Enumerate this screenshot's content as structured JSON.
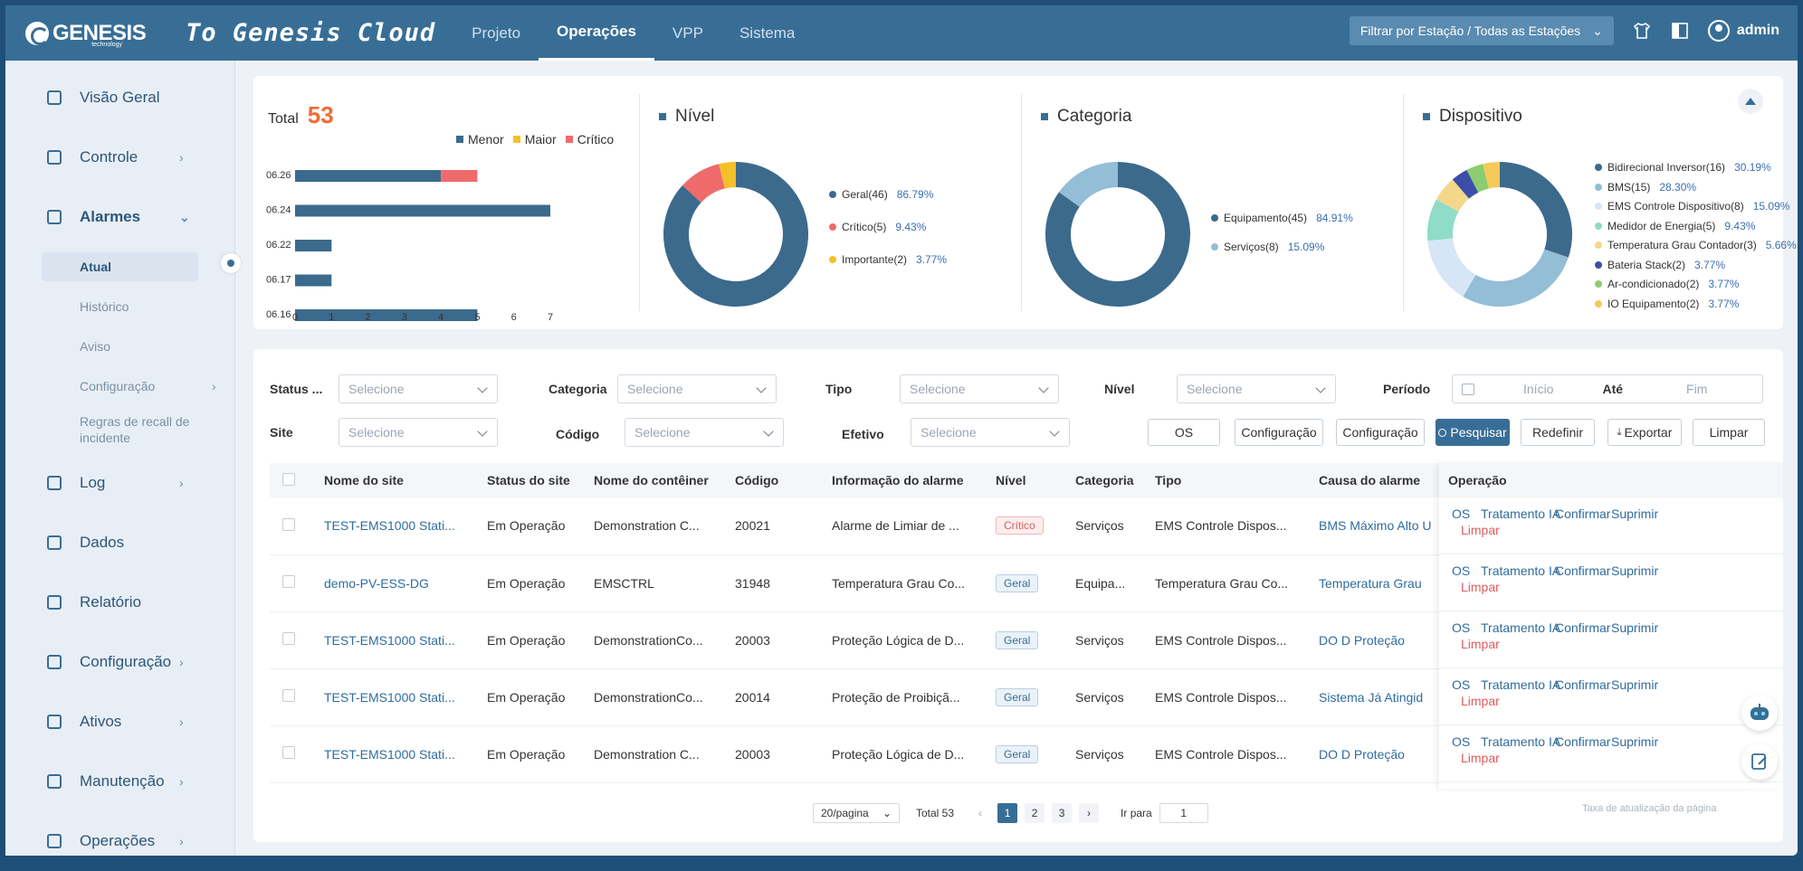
{
  "topbar": {
    "logo_text": "GENESIS",
    "logo_sub": "technology",
    "cloud_title": "To Genesis Cloud",
    "nav": [
      "Projeto",
      "Operações",
      "VPP",
      "Sistema"
    ],
    "station_filter": "Filtrar por Estação / Todas as Estações",
    "user": "admin"
  },
  "sidebar": {
    "items": [
      {
        "label": "Visão Geral",
        "icon": "overview-icon"
      },
      {
        "label": "Controle",
        "icon": "control-icon"
      },
      {
        "label": "Alarmes",
        "icon": "alarm-icon"
      },
      {
        "label": "Log",
        "icon": "log-icon"
      },
      {
        "label": "Dados",
        "icon": "data-icon"
      },
      {
        "label": "Relatório",
        "icon": "report-icon"
      },
      {
        "label": "Configuração",
        "icon": "config-icon"
      },
      {
        "label": "Ativos",
        "icon": "assets-icon"
      },
      {
        "label": "Manutenção",
        "icon": "maintenance-icon"
      },
      {
        "label": "Operações",
        "icon": "operations-icon"
      }
    ],
    "alarm_sub": [
      "Atual",
      "Histórico",
      "Aviso",
      "Configuração",
      "Regras de recall de incidente"
    ]
  },
  "stats": {
    "total_label": "Total",
    "total_value": "53",
    "legend": [
      {
        "name": "Menor",
        "color": "#3b6a8c"
      },
      {
        "name": "Maior",
        "color": "#f5c02a"
      },
      {
        "name": "Crítico",
        "color": "#ef6b6b"
      }
    ],
    "bars": [
      {
        "date": "06.26",
        "menor": 4,
        "maior": 0,
        "critico": 1
      },
      {
        "date": "06.24",
        "menor": 7,
        "maior": 0,
        "critico": 0
      },
      {
        "date": "06.22",
        "menor": 1,
        "maior": 0,
        "critico": 0
      },
      {
        "date": "06.17",
        "menor": 1,
        "maior": 0,
        "critico": 0
      },
      {
        "date": "06.16",
        "menor": 5,
        "maior": 0,
        "critico": 0
      }
    ],
    "xticks": [
      "0",
      "1",
      "2",
      "3",
      "4",
      "5",
      "6",
      "7"
    ],
    "nivel": {
      "title": "Nível",
      "items": [
        {
          "label": "Geral(46)",
          "pct": "86.79%",
          "value": 46,
          "color": "#3b6a8c"
        },
        {
          "label": "Crítico(5)",
          "pct": "9.43%",
          "value": 5,
          "color": "#ef6b6b"
        },
        {
          "label": "Importante(2)",
          "pct": "3.77%",
          "value": 2,
          "color": "#f5c02a"
        }
      ]
    },
    "categoria": {
      "title": "Categoria",
      "items": [
        {
          "label": "Equipamento(45)",
          "pct": "84.91%",
          "value": 45,
          "color": "#3b6a8c"
        },
        {
          "label": "Serviços(8)",
          "pct": "15.09%",
          "value": 8,
          "color": "#94bdd6"
        }
      ]
    },
    "dispositivo": {
      "title": "Dispositivo",
      "items": [
        {
          "label": "Bidirecional Inversor(16)",
          "pct": "30.19%",
          "value": 16,
          "color": "#3b6a8c"
        },
        {
          "label": "BMS(15)",
          "pct": "28.30%",
          "value": 15,
          "color": "#94bdd6"
        },
        {
          "label": "EMS Controle Dispositivo(8)",
          "pct": "15.09%",
          "value": 8,
          "color": "#d6e6f7"
        },
        {
          "label": "Medidor de Energia(5)",
          "pct": "9.43%",
          "value": 5,
          "color": "#8fdcc8"
        },
        {
          "label": "Temperatura Grau Contador(3)",
          "pct": "5.66%",
          "value": 3,
          "color": "#f4d88a"
        },
        {
          "label": "Bateria Stack(2)",
          "pct": "3.77%",
          "value": 2,
          "color": "#3c4fa8"
        },
        {
          "label": "Ar-condicionado(2)",
          "pct": "3.77%",
          "value": 2,
          "color": "#8ccc70"
        },
        {
          "label": "IO Equipamento(2)",
          "pct": "3.77%",
          "value": 2,
          "color": "#f5c95a"
        }
      ]
    }
  },
  "filters": {
    "status_label": "Status ...",
    "categoria_label": "Categoria",
    "tipo_label": "Tipo",
    "nivel_label": "Nível",
    "periodo_label": "Período",
    "site_label": "Site",
    "codigo_label": "Código",
    "efetivo_label": "Efetivo",
    "placeholder": "Selecione",
    "inicio": "Início",
    "ate": "Até",
    "fim": "Fim"
  },
  "buttons": {
    "os": "OS",
    "config1": "Configuração",
    "config2": "Configuração",
    "pesquisar": "Pesquisar",
    "redefinir": "Redefinir",
    "exportar": "Exportar",
    "limpar": "Limpar"
  },
  "table": {
    "headers": [
      "Nome do site",
      "Status do site",
      "Nome do contêiner",
      "Código",
      "Informação do alarme",
      "Nível",
      "Categoria",
      "Tipo",
      "Causa do alarme"
    ],
    "ops_header": "Operação",
    "rows": [
      {
        "site": "TEST-EMS1000 Stati...",
        "status": "Em Operação",
        "container": "Demonstration C...",
        "code": "20021",
        "info": "Alarme de Limiar de ...",
        "level": "Crítico",
        "level_type": "crit",
        "category": "Serviços",
        "type": "EMS Controle Dispos...",
        "cause": "BMS Máximo Alto U"
      },
      {
        "site": "demo-PV-ESS-DG",
        "status": "Em Operação",
        "container": "EMSCTRL",
        "code": "31948",
        "info": "Temperatura Grau Co...",
        "level": "Geral",
        "level_type": "geral",
        "category": "Equipa...",
        "type": "Temperatura Grau Co...",
        "cause": "Temperatura Grau"
      },
      {
        "site": "TEST-EMS1000 Stati...",
        "status": "Em Operação",
        "container": "DemonstrationCo...",
        "code": "20003",
        "info": "Proteção Lógica de D...",
        "level": "Geral",
        "level_type": "geral",
        "category": "Serviços",
        "type": "EMS Controle Dispos...",
        "cause": "DO D Proteção"
      },
      {
        "site": "TEST-EMS1000 Stati...",
        "status": "Em Operação",
        "container": "DemonstrationCo...",
        "code": "20014",
        "info": "Proteção de Proibiçã...",
        "level": "Geral",
        "level_type": "geral",
        "category": "Serviços",
        "type": "EMS Controle Dispos...",
        "cause": "Sistema Já Atingid"
      },
      {
        "site": "TEST-EMS1000 Stati...",
        "status": "Em Operação",
        "container": "Demonstration C...",
        "code": "20003",
        "info": "Proteção Lógica de D...",
        "level": "Geral",
        "level_type": "geral",
        "category": "Serviços",
        "type": "EMS Controle Dispos...",
        "cause": "DO D Proteção"
      }
    ],
    "ops_actions": [
      "OS",
      "Tratamento IA",
      "Confirmar",
      "Suprimir",
      "Limpar"
    ]
  },
  "pager": {
    "per_page": "20/pagina",
    "total": "Total 53",
    "pages": [
      "1",
      "2",
      "3"
    ],
    "goto_label": "Ir para",
    "goto_value": "1",
    "refresh": "Taxa de atualização da página"
  }
}
